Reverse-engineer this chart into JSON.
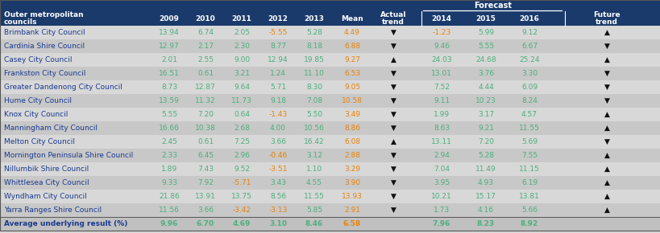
{
  "councils": [
    "Brimbank City Council",
    "Cardinia Shire Council",
    "Casey City Council",
    "Frankston City Council",
    "Greater Dandenong City Council",
    "Hume City Council",
    "Knox City Council",
    "Manningham City Council",
    "Melton City Council",
    "Mornington Peninsula Shire Council",
    "Nillumbik Shire Council",
    "Whittlesea City Council",
    "Wyndham City Council",
    "Yarra Ranges Shire Council",
    "Average underlying result (%)"
  ],
  "data": [
    [
      "13.94",
      "6.74",
      "2.05",
      "-5.55",
      "5.28",
      "4.49",
      "▼",
      "-1.23",
      "5.99",
      "9.12",
      "▲"
    ],
    [
      "12.97",
      "2.17",
      "2.30",
      "8.77",
      "8.18",
      "6.88",
      "▼",
      "9.46",
      "5.55",
      "6.67",
      "▼"
    ],
    [
      "2.01",
      "2.55",
      "9.00",
      "12.94",
      "19.85",
      "9.27",
      "▲",
      "24.03",
      "24.68",
      "25.24",
      "▲"
    ],
    [
      "16.51",
      "0.61",
      "3.21",
      "1.24",
      "11.10",
      "6.53",
      "▼",
      "13.01",
      "3.76",
      "3.30",
      "▼"
    ],
    [
      "8.73",
      "12.87",
      "9.64",
      "5.71",
      "8.30",
      "9.05",
      "▼",
      "7.52",
      "4.44",
      "6.09",
      "▼"
    ],
    [
      "13.59",
      "11.32",
      "11.73",
      "9.18",
      "7.08",
      "10.58",
      "▼",
      "9.11",
      "10.23",
      "8.24",
      "▼"
    ],
    [
      "5.55",
      "7.20",
      "0.64",
      "-1.43",
      "5.50",
      "3.49",
      "▼",
      "1.99",
      "3.17",
      "4.57",
      "▲"
    ],
    [
      "16.66",
      "10.38",
      "2.68",
      "4.00",
      "10.56",
      "8.86",
      "▼",
      "8.63",
      "9.21",
      "11.55",
      "▲"
    ],
    [
      "2.45",
      "0.61",
      "7.25",
      "3.66",
      "16.42",
      "6.08",
      "▲",
      "13.11",
      "7.20",
      "5.69",
      "▼"
    ],
    [
      "2.33",
      "6.45",
      "2.96",
      "-0.46",
      "3.12",
      "2.88",
      "▼",
      "2.94",
      "5.28",
      "7.55",
      "▲"
    ],
    [
      "1.89",
      "7.43",
      "9.52",
      "-3.51",
      "1.10",
      "3.29",
      "▼",
      "7.04",
      "11.49",
      "11.15",
      "▲"
    ],
    [
      "9.33",
      "7.92",
      "-5.71",
      "3.43",
      "4.55",
      "3.90",
      "▼",
      "3.95",
      "4.93",
      "6.19",
      "▲"
    ],
    [
      "21.86",
      "13.91",
      "13.75",
      "8.56",
      "11.55",
      "13.93",
      "▼",
      "10.21",
      "15.17",
      "13.81",
      "▲"
    ],
    [
      "11.56",
      "3.66",
      "-3.42",
      "-3.13",
      "5.85",
      "2.91",
      "▼",
      "1.73",
      "4.16",
      "5.66",
      "▲"
    ],
    [
      "9.96",
      "6.70",
      "4.69",
      "3.10",
      "8.46",
      "6.58",
      "",
      "7.96",
      "8.23",
      "8.92",
      ""
    ]
  ],
  "orange_cells": {
    "0": [
      3,
      7
    ],
    "6": [
      3
    ],
    "9": [
      3
    ],
    "10": [
      3
    ],
    "11": [
      2
    ],
    "13": [
      2,
      3
    ]
  },
  "header_bg": "#1A3A6B",
  "row_light": "#D8D8D8",
  "row_dark": "#C8C8C8",
  "avg_bg": "#C0C0C0",
  "green": "#4CAF7D",
  "orange": "#E8820A",
  "council_blue": "#1A3A8F",
  "avg_blue": "#00008B",
  "white": "#FFFFFF",
  "black": "#111111",
  "forecast_bg_header": "#1A3A6B"
}
